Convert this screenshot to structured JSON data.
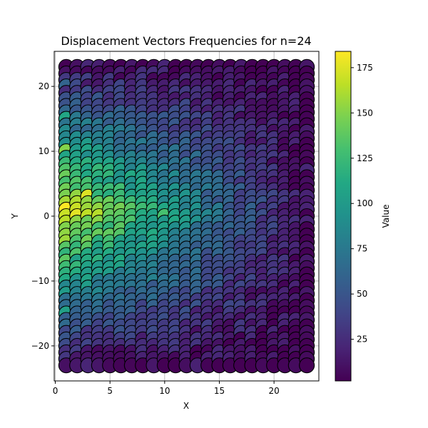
{
  "chart_data": {
    "type": "scatter",
    "title": "Displacement Vectors Frequencies for n=24",
    "xlabel": "X",
    "ylabel": "Y",
    "colorbar_label": "Value",
    "colormap": "viridis",
    "xlim": [
      -0.1,
      24.1
    ],
    "ylim": [
      -25.4,
      25.4
    ],
    "x_ticks": [
      0,
      5,
      10,
      15,
      20
    ],
    "y_ticks": [
      -20,
      -10,
      0,
      10,
      20
    ],
    "colorbar_range": [
      2,
      184
    ],
    "colorbar_ticks": [
      25,
      50,
      75,
      100,
      125,
      150,
      175
    ],
    "grid": true,
    "marker_edge_color": "#000000",
    "points_description": "one marker per integer displacement (x, y) with x in 1..23 and y in -23..23 (x=24 column absent in this view); value = count",
    "x_range": [
      1,
      23
    ],
    "y_range": [
      -23,
      23
    ],
    "sample_values": [
      {
        "x": 1,
        "y": 1,
        "value": 184
      },
      {
        "x": 3,
        "y": 3,
        "value": 175
      },
      {
        "x": 1,
        "y": -1,
        "value": 165
      },
      {
        "x": 1,
        "y": 10,
        "value": 150
      },
      {
        "x": 5,
        "y": 0,
        "value": 140
      },
      {
        "x": 10,
        "y": 0,
        "value": 130
      },
      {
        "x": 1,
        "y": 15,
        "value": 110
      },
      {
        "x": 1,
        "y": -15,
        "value": 105
      },
      {
        "x": 12,
        "y": 0,
        "value": 100
      },
      {
        "x": 15,
        "y": 0,
        "value": 75
      },
      {
        "x": 1,
        "y": 20,
        "value": 60
      },
      {
        "x": 17,
        "y": 0,
        "value": 40
      },
      {
        "x": 20,
        "y": 0,
        "value": 20
      },
      {
        "x": 22,
        "y": 23,
        "value": 3
      },
      {
        "x": 23,
        "y": 22,
        "value": 2
      }
    ]
  }
}
